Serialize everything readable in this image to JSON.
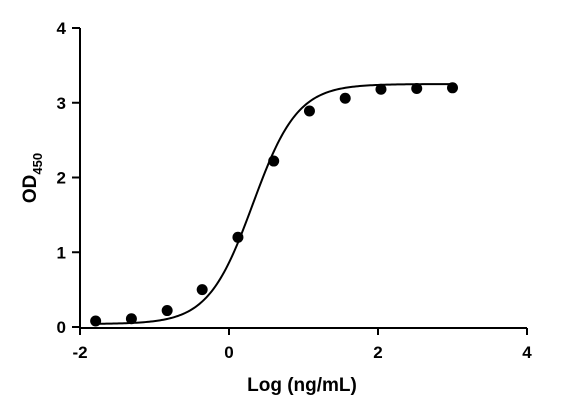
{
  "chart_data": {
    "type": "scatter",
    "xlabel": "Log (ng/mL)",
    "ylabel": "OD",
    "ylabel_sub": "450",
    "xlim": [
      -2,
      4
    ],
    "ylim": [
      0,
      4
    ],
    "xticks": [
      -2,
      0,
      2,
      4
    ],
    "yticks": [
      0,
      1,
      2,
      3,
      4
    ],
    "grid": false,
    "series": [
      {
        "marker": "filled-circle",
        "color": "#000000",
        "points": [
          {
            "x": -1.79,
            "y": 0.08
          },
          {
            "x": -1.31,
            "y": 0.11
          },
          {
            "x": -0.83,
            "y": 0.22
          },
          {
            "x": -0.36,
            "y": 0.5
          },
          {
            "x": 0.12,
            "y": 1.2
          },
          {
            "x": 0.6,
            "y": 2.22
          },
          {
            "x": 1.08,
            "y": 2.89
          },
          {
            "x": 1.56,
            "y": 3.06
          },
          {
            "x": 2.04,
            "y": 3.18
          },
          {
            "x": 2.52,
            "y": 3.19
          },
          {
            "x": 3.0,
            "y": 3.2
          }
        ]
      }
    ],
    "fit_curve": {
      "type": "4PL",
      "color": "#000000",
      "bottom": 0.04,
      "top": 3.25,
      "ec50_log": 0.32,
      "hill": 1.45,
      "x_range": [
        -1.79,
        3.0
      ]
    }
  }
}
